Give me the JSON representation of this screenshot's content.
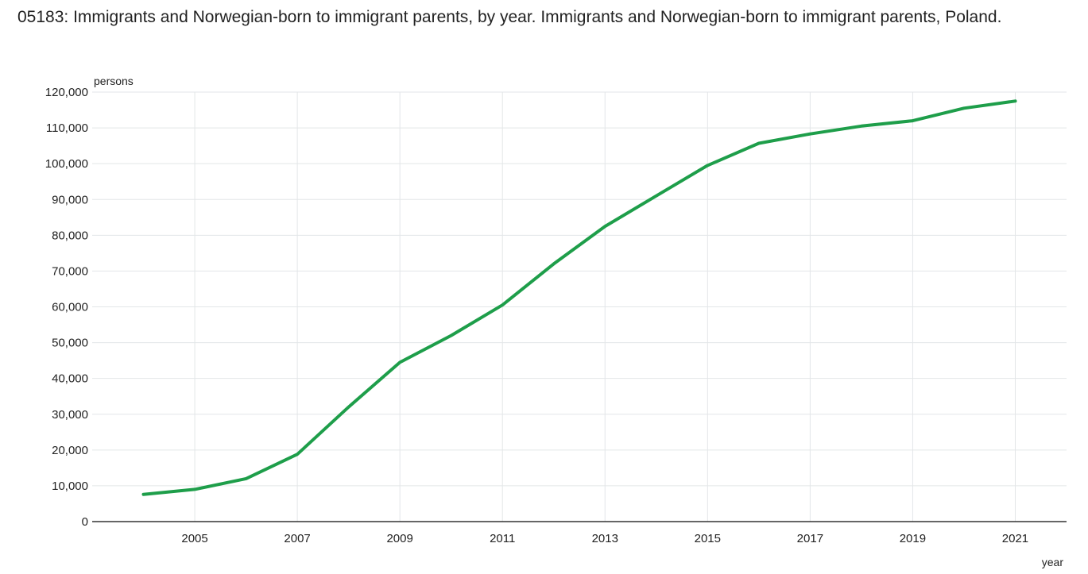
{
  "chart_data": {
    "type": "line",
    "title": "05183: Immigrants and Norwegian-born to immigrant parents, by year. Immigrants and Norwegian-born to immigrant parents, Poland.",
    "ylabel": "persons",
    "xlabel": "year",
    "ylim": [
      0,
      120000
    ],
    "yticks": [
      0,
      10000,
      20000,
      30000,
      40000,
      50000,
      60000,
      70000,
      80000,
      90000,
      100000,
      110000,
      120000
    ],
    "ytick_labels": [
      "0",
      "10,000",
      "20,000",
      "30,000",
      "40,000",
      "50,000",
      "60,000",
      "70,000",
      "80,000",
      "90,000",
      "100,000",
      "110,000",
      "120,000"
    ],
    "xlim": [
      2003,
      2022
    ],
    "xticks": [
      2005,
      2007,
      2009,
      2011,
      2013,
      2015,
      2017,
      2019,
      2021
    ],
    "xtick_labels": [
      "2005",
      "2007",
      "2009",
      "2011",
      "2013",
      "2015",
      "2017",
      "2019",
      "2021"
    ],
    "grid": true,
    "x": [
      2004,
      2005,
      2006,
      2007,
      2008,
      2009,
      2010,
      2011,
      2012,
      2013,
      2014,
      2015,
      2016,
      2017,
      2018,
      2019,
      2020,
      2021
    ],
    "series": [
      {
        "color": "#1e9e4a",
        "values": [
          7600,
          9000,
          12000,
          18800,
          32000,
          44500,
          52000,
          60500,
          72000,
          82500,
          91000,
          99500,
          105700,
          108300,
          110500,
          112000,
          115500,
          117500
        ]
      }
    ],
    "colors": {
      "line": "#1e9e4a",
      "grid": "#e3e6e8",
      "axis": "#333333"
    }
  }
}
